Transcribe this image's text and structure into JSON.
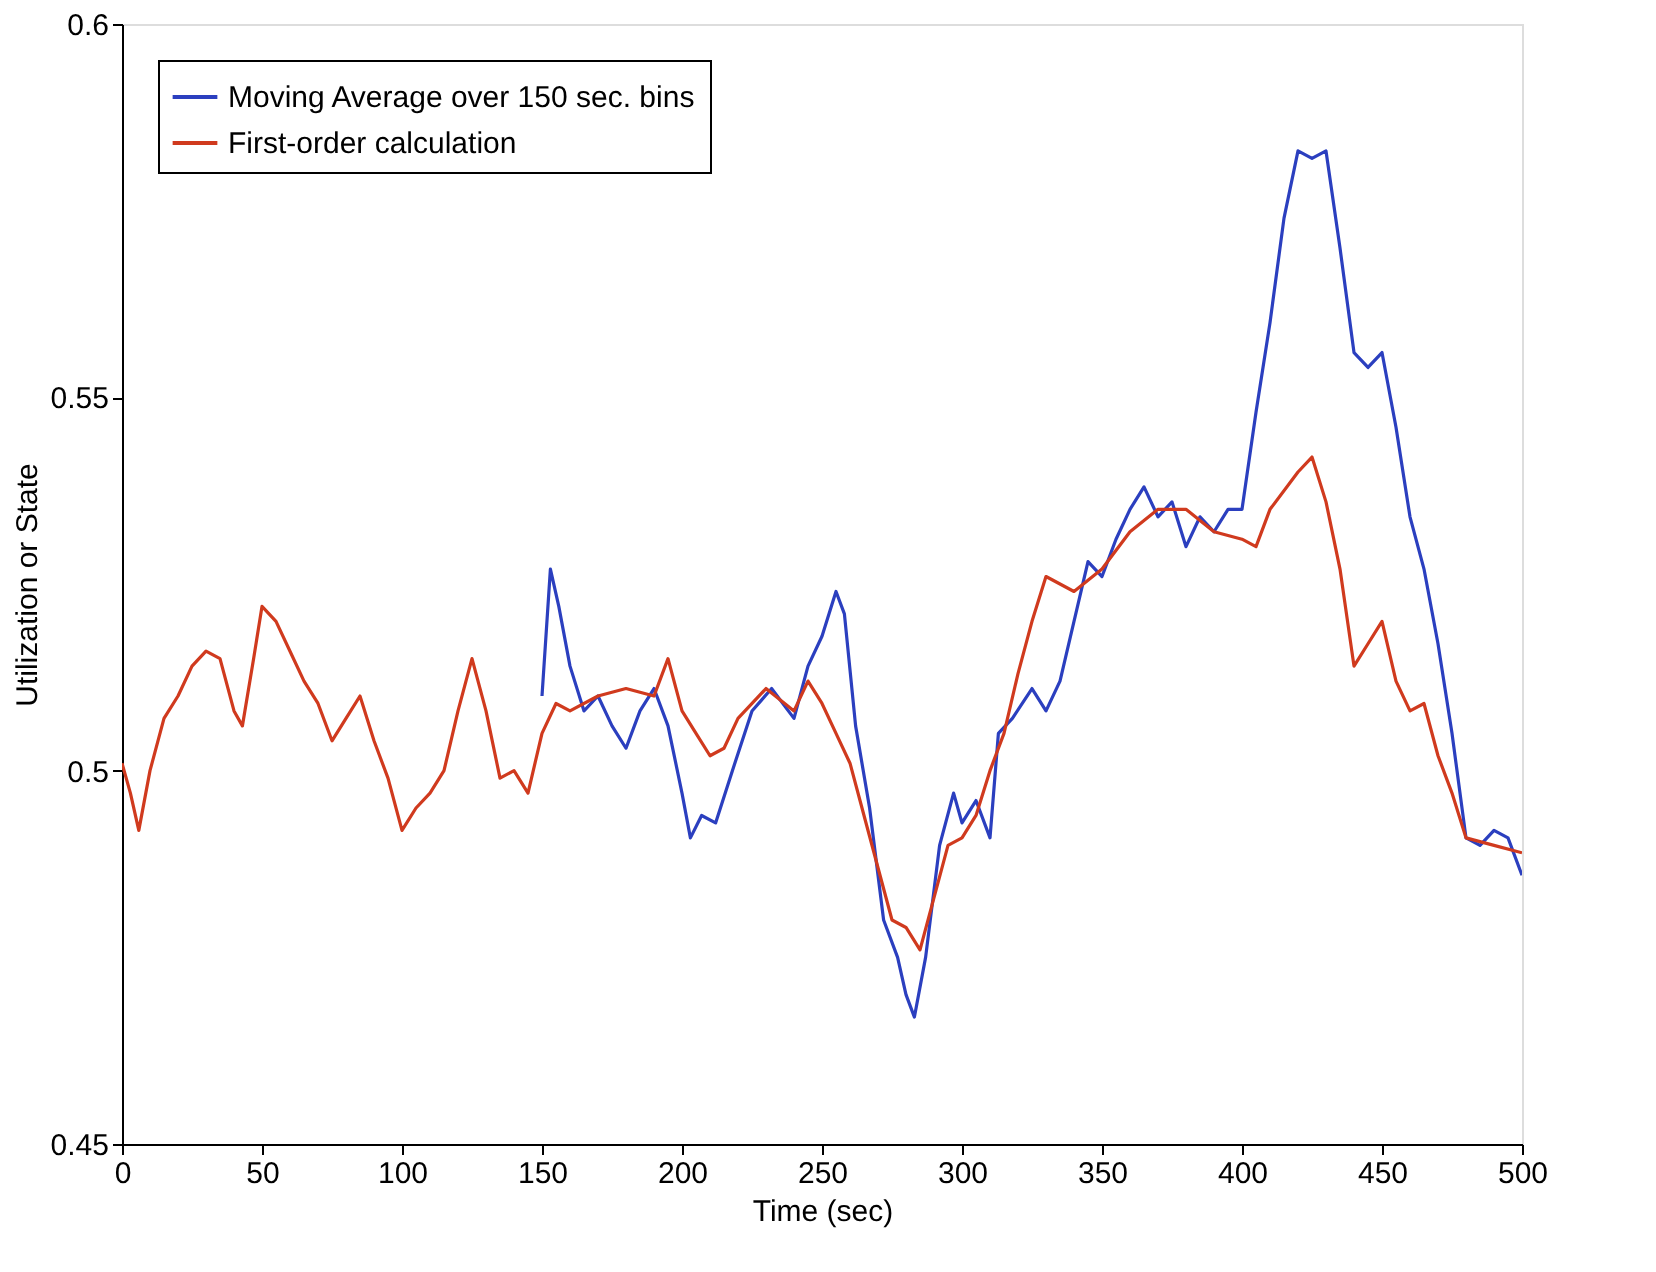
{
  "chart_data": {
    "type": "line",
    "xlabel": "Time (sec)",
    "ylabel": "Utilization or State",
    "xlim": [
      0,
      500
    ],
    "ylim": [
      0.45,
      0.6
    ],
    "xticks": [
      0,
      50,
      100,
      150,
      200,
      250,
      300,
      350,
      400,
      450,
      500
    ],
    "yticks": [
      0.45,
      0.5,
      0.55,
      0.6
    ],
    "grid": false,
    "legend": "top left",
    "marker": "none",
    "line_style": "solid",
    "series": [
      {
        "name": "Moving Average over 150 sec. bins",
        "color": "#2b3fbf",
        "x": [
          150,
          153,
          156,
          160,
          165,
          170,
          175,
          180,
          185,
          190,
          195,
          200,
          203,
          207,
          212,
          218,
          225,
          232,
          240,
          245,
          250,
          255,
          258,
          262,
          267,
          272,
          277,
          280,
          283,
          287,
          292,
          297,
          300,
          305,
          310,
          313,
          318,
          325,
          330,
          335,
          340,
          345,
          350,
          355,
          360,
          365,
          370,
          375,
          380,
          385,
          390,
          395,
          400,
          405,
          410,
          415,
          420,
          425,
          430,
          435,
          440,
          445,
          450,
          455,
          460,
          465,
          470,
          475,
          480,
          485,
          490,
          495,
          500
        ],
        "values": [
          0.51,
          0.527,
          0.522,
          0.514,
          0.508,
          0.51,
          0.506,
          0.503,
          0.508,
          0.511,
          0.506,
          0.497,
          0.491,
          0.494,
          0.493,
          0.5,
          0.508,
          0.511,
          0.507,
          0.514,
          0.518,
          0.524,
          0.521,
          0.506,
          0.495,
          0.48,
          0.475,
          0.47,
          0.467,
          0.475,
          0.49,
          0.497,
          0.493,
          0.496,
          0.491,
          0.505,
          0.507,
          0.511,
          0.508,
          0.512,
          0.52,
          0.528,
          0.526,
          0.531,
          0.535,
          0.538,
          0.534,
          0.536,
          0.53,
          0.534,
          0.532,
          0.535,
          0.535,
          0.548,
          0.56,
          0.574,
          0.583,
          0.582,
          0.583,
          0.57,
          0.556,
          0.554,
          0.556,
          0.546,
          0.534,
          0.527,
          0.517,
          0.505,
          0.491,
          0.49,
          0.492,
          0.491,
          0.486
        ]
      },
      {
        "name": "First-order calculation",
        "color": "#d03a1e",
        "x": [
          0,
          3,
          6,
          10,
          15,
          20,
          25,
          30,
          35,
          40,
          43,
          47,
          50,
          55,
          60,
          65,
          70,
          75,
          80,
          85,
          90,
          95,
          100,
          105,
          110,
          115,
          120,
          125,
          130,
          135,
          140,
          145,
          150,
          155,
          160,
          170,
          180,
          190,
          195,
          200,
          205,
          210,
          215,
          220,
          230,
          240,
          245,
          250,
          255,
          260,
          265,
          270,
          275,
          280,
          285,
          290,
          295,
          300,
          305,
          310,
          315,
          320,
          325,
          330,
          340,
          350,
          360,
          370,
          380,
          390,
          400,
          405,
          410,
          420,
          425,
          430,
          435,
          440,
          445,
          450,
          455,
          460,
          465,
          470,
          475,
          480,
          490,
          500
        ],
        "values": [
          0.501,
          0.497,
          0.492,
          0.5,
          0.507,
          0.51,
          0.514,
          0.516,
          0.515,
          0.508,
          0.506,
          0.515,
          0.522,
          0.52,
          0.516,
          0.512,
          0.509,
          0.504,
          0.507,
          0.51,
          0.504,
          0.499,
          0.492,
          0.495,
          0.497,
          0.5,
          0.508,
          0.515,
          0.508,
          0.499,
          0.5,
          0.497,
          0.505,
          0.509,
          0.508,
          0.51,
          0.511,
          0.51,
          0.515,
          0.508,
          0.505,
          0.502,
          0.503,
          0.507,
          0.511,
          0.508,
          0.512,
          0.509,
          0.505,
          0.501,
          0.494,
          0.487,
          0.48,
          0.479,
          0.476,
          0.483,
          0.49,
          0.491,
          0.494,
          0.5,
          0.505,
          0.513,
          0.52,
          0.526,
          0.524,
          0.527,
          0.532,
          0.535,
          0.535,
          0.532,
          0.531,
          0.53,
          0.535,
          0.54,
          0.542,
          0.536,
          0.527,
          0.514,
          0.517,
          0.52,
          0.512,
          0.508,
          0.509,
          0.502,
          0.497,
          0.491,
          0.49,
          0.489
        ]
      }
    ]
  }
}
